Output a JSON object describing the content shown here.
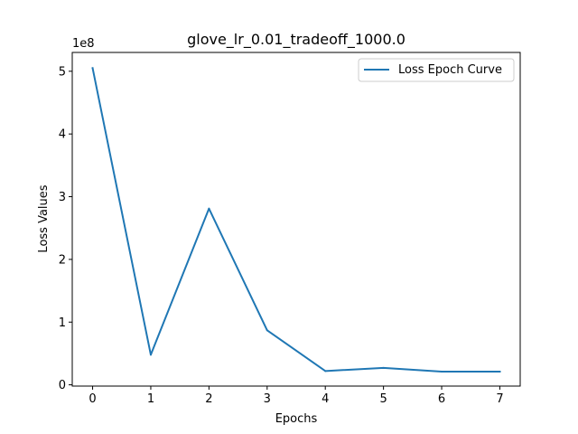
{
  "chart_data": {
    "type": "line",
    "title": "glove_lr_0.01_tradeoff_1000.0",
    "xlabel": "Epochs",
    "ylabel": "Loss Values",
    "y_multiplier_label": "1e8",
    "x": [
      0,
      1,
      2,
      3,
      4,
      5,
      6,
      7
    ],
    "x_ticks": [
      "0",
      "1",
      "2",
      "3",
      "4",
      "5",
      "6",
      "7"
    ],
    "y_ticks": [
      "0",
      "1",
      "2",
      "3",
      "4",
      "5"
    ],
    "xlim": [
      -0.35,
      7.35
    ],
    "ylim": [
      -0.02,
      5.3
    ],
    "grid": false,
    "legend": "top-right",
    "series": [
      {
        "name": "Loss Epoch Curve",
        "color": "#1f77b4",
        "values": [
          5.05,
          0.48,
          2.81,
          0.87,
          0.22,
          0.27,
          0.21,
          0.21
        ]
      }
    ]
  }
}
